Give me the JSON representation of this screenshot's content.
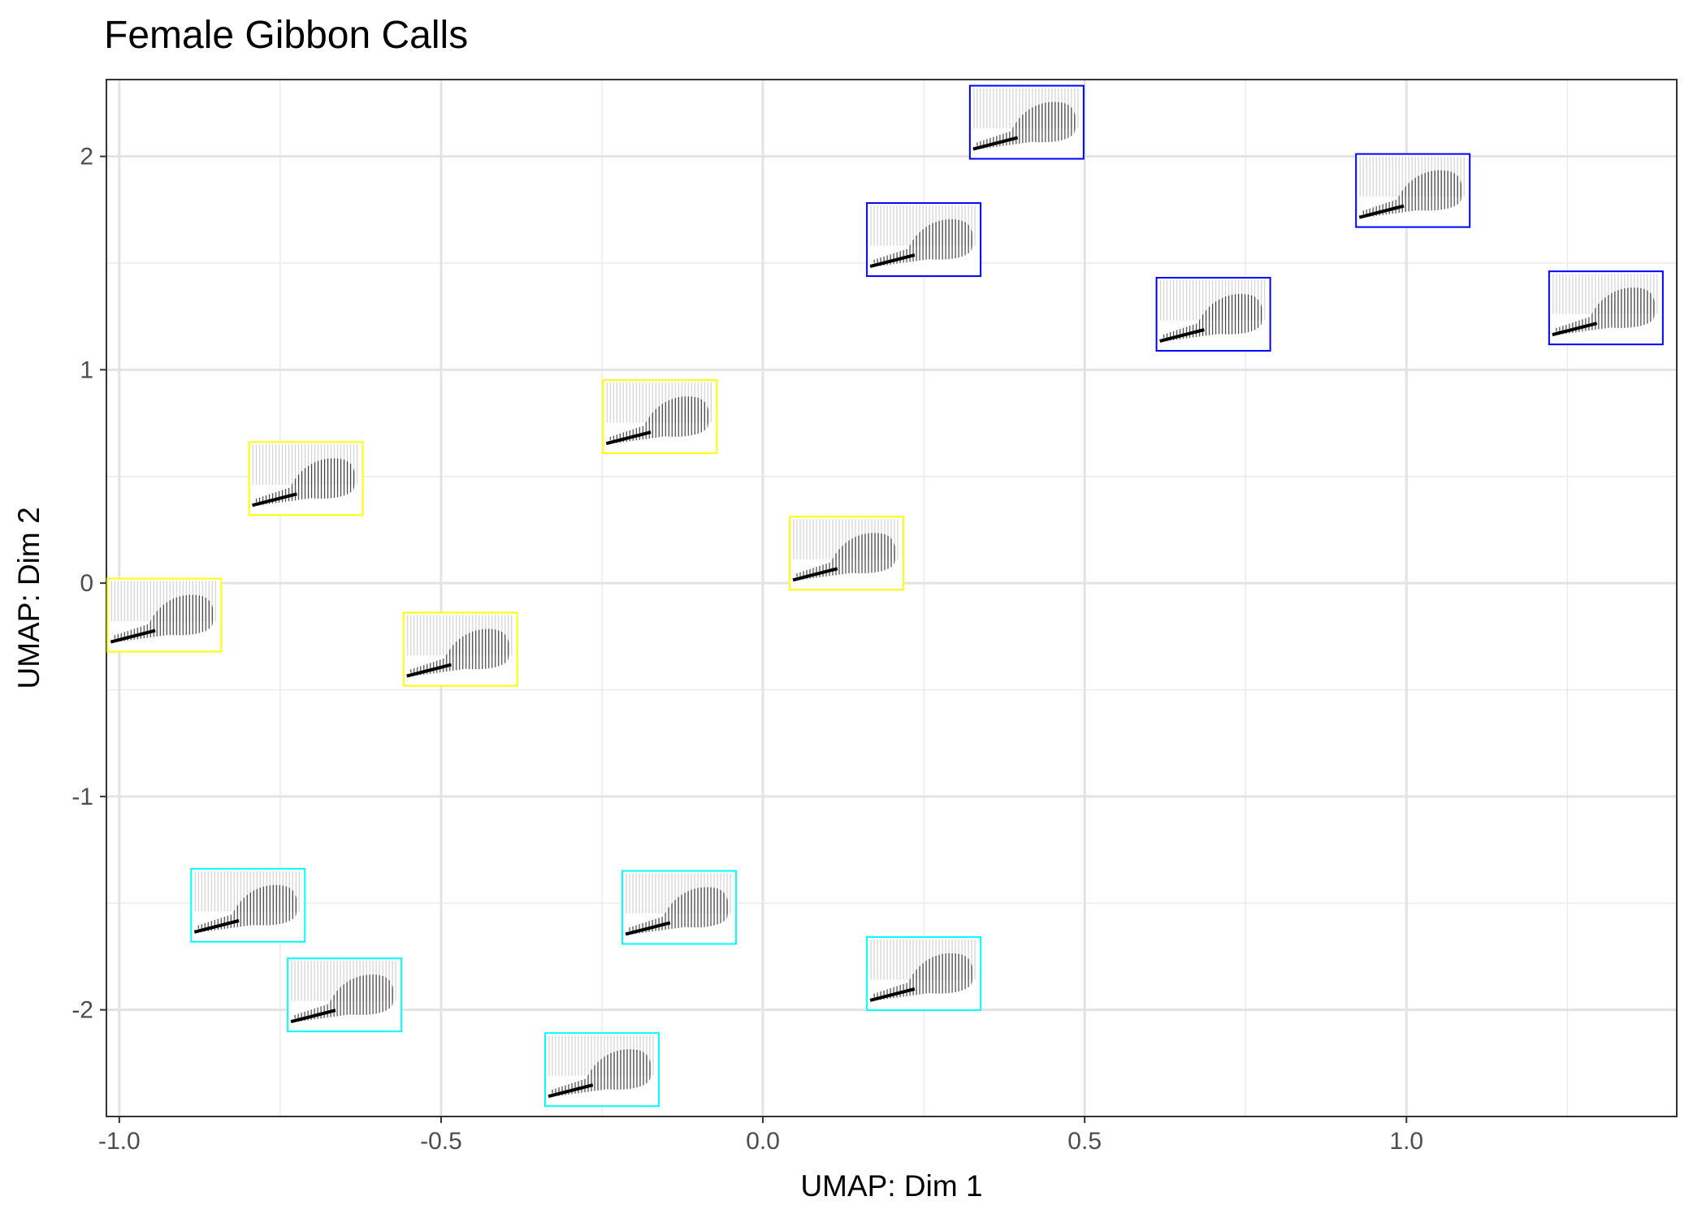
{
  "chart_data": {
    "type": "scatter",
    "title": "Female Gibbon Calls",
    "xlabel": "UMAP: Dim 1",
    "ylabel": "UMAP: Dim 2",
    "xlim": [
      -1.02,
      1.42
    ],
    "ylim": [
      -2.5,
      2.36
    ],
    "xticks": [
      -1.0,
      -0.5,
      0.0,
      0.5,
      1.0
    ],
    "xtick_labels": [
      "-1.0",
      "-0.5",
      "0.0",
      "0.5",
      "1.0"
    ],
    "yticks": [
      -2,
      -1,
      0,
      1,
      2
    ],
    "ytick_labels": [
      "-2",
      "-1",
      "0",
      "1",
      "2"
    ],
    "grid": true,
    "marker": "spectrogram-thumbnail",
    "series": [
      {
        "color": "#0000ff",
        "points": [
          {
            "x": 0.41,
            "y": 2.16
          },
          {
            "x": 0.25,
            "y": 1.61
          },
          {
            "x": 1.01,
            "y": 1.84
          },
          {
            "x": 0.7,
            "y": 1.26
          },
          {
            "x": 1.31,
            "y": 1.29
          }
        ]
      },
      {
        "color": "#ffff00",
        "points": [
          {
            "x": -0.16,
            "y": 0.78
          },
          {
            "x": -0.71,
            "y": 0.49
          },
          {
            "x": -0.93,
            "y": -0.15
          },
          {
            "x": -0.47,
            "y": -0.31
          },
          {
            "x": 0.13,
            "y": 0.14
          }
        ]
      },
      {
        "color": "#00ffff",
        "points": [
          {
            "x": -0.8,
            "y": -1.51
          },
          {
            "x": -0.65,
            "y": -1.93
          },
          {
            "x": -0.13,
            "y": -1.52
          },
          {
            "x": -0.25,
            "y": -2.28
          },
          {
            "x": 0.25,
            "y": -1.83
          }
        ]
      }
    ]
  }
}
